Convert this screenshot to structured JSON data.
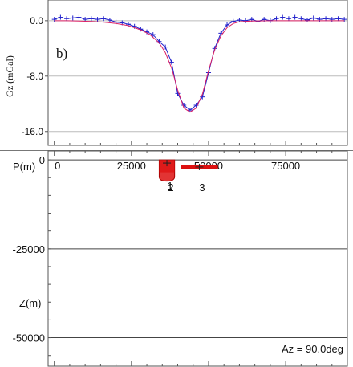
{
  "chart_data": [
    {
      "type": "line",
      "panel_label": "b)",
      "ylabel": "Gz (mGal)",
      "xlim": [
        -2000,
        95000
      ],
      "ylim": [
        -18,
        3
      ],
      "yticks": [
        0,
        -8,
        -16
      ],
      "ytick_labels": [
        "0.0",
        "-8.0",
        "-16.0"
      ],
      "series": [
        {
          "style": "observed",
          "color": "#2222cc",
          "marker": "plus",
          "x": [
            0,
            2000,
            4000,
            6000,
            8000,
            10000,
            12000,
            14000,
            16000,
            18000,
            20000,
            22000,
            24000,
            26000,
            28000,
            30000,
            32000,
            34000,
            36000,
            38000,
            40000,
            42000,
            44000,
            46000,
            48000,
            50000,
            52000,
            54000,
            56000,
            58000,
            60000,
            62000,
            64000,
            66000,
            68000,
            70000,
            72000,
            74000,
            76000,
            78000,
            80000,
            82000,
            84000,
            86000,
            88000,
            90000,
            92000,
            94000
          ],
          "y": [
            0.2,
            0.5,
            0.3,
            0.4,
            0.5,
            0.2,
            0.3,
            0.2,
            0.3,
            0.1,
            -0.2,
            -0.3,
            -0.5,
            -0.8,
            -1.2,
            -1.6,
            -2.0,
            -3.0,
            -3.8,
            -6.0,
            -10.5,
            -12.2,
            -12.9,
            -12.2,
            -11.0,
            -7.5,
            -4.0,
            -1.8,
            -0.6,
            -0.1,
            0.1,
            0.0,
            0.2,
            -0.1,
            0.2,
            0.0,
            0.3,
            0.5,
            0.3,
            0.5,
            0.3,
            0.1,
            0.4,
            0.2,
            0.3,
            0.2,
            0.3,
            0.2
          ]
        },
        {
          "style": "calculated",
          "color": "#dd2266",
          "marker": "none",
          "x": [
            0,
            4000,
            8000,
            12000,
            16000,
            20000,
            24000,
            28000,
            31000,
            34000,
            36000,
            38000,
            40000,
            42000,
            44000,
            46000,
            48000,
            50000,
            52000,
            54000,
            56000,
            58000,
            60000,
            64000,
            70000,
            80000,
            94000
          ],
          "y": [
            0.0,
            0.0,
            -0.05,
            -0.1,
            -0.2,
            -0.4,
            -0.7,
            -1.3,
            -2.0,
            -3.2,
            -4.6,
            -6.8,
            -10.0,
            -12.6,
            -13.2,
            -12.6,
            -10.6,
            -7.2,
            -4.2,
            -2.2,
            -1.0,
            -0.4,
            -0.15,
            -0.05,
            0.0,
            0.0,
            0.0
          ]
        }
      ]
    },
    {
      "type": "scatter",
      "panel": "section",
      "xaxis_label": "P(m)",
      "xticks": [
        0,
        25000,
        50000,
        75000
      ],
      "xtick_labels": [
        "0",
        "25000",
        "50000",
        "75000"
      ],
      "xlim": [
        -2000,
        95000
      ],
      "ylabel": "Z(m)",
      "ylim": [
        -58000,
        2500
      ],
      "yticks": [
        0,
        -25000,
        -50000
      ],
      "ytick_labels": [
        "0",
        "-25000",
        "-50000"
      ],
      "annotation": "Az = 90.0deg",
      "bodies": [
        {
          "id": "1",
          "label": "1",
          "shape": "rounded-block",
          "color": "#dd1111",
          "x_min": 34000,
          "x_max": 39000,
          "z_top": 0,
          "z_bottom": -6000
        },
        {
          "id": "2",
          "label": "2",
          "shape": "block",
          "color": "#dd1111",
          "x_min": 34000,
          "x_max": 39000,
          "z_top": 0,
          "z_bottom": -5000
        },
        {
          "id": "3",
          "label": "3",
          "shape": "thin-bar",
          "color": "#dd1111",
          "x_min": 41000,
          "x_max": 53000,
          "z_top": -1500,
          "z_bottom": -2500
        }
      ]
    }
  ]
}
